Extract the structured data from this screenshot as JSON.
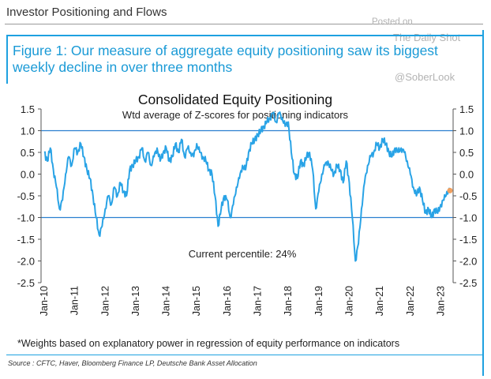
{
  "header": {
    "title": "Investor Positioning and Flows"
  },
  "figure": {
    "title": "Figure 1: Our measure of aggregate equity positioning saw its biggest weekly decline in over three months"
  },
  "watermark": {
    "posted": "Posted on",
    "site": "The Daily Shot",
    "handle": "@SoberLook"
  },
  "footnote": "*Weights based on explanatory power in regression of equity performance on indicators",
  "source": "Source : CFTC, Haver, Bloomberg Finance LP, Deutsche Bank Asset Allocation",
  "colors": {
    "accent": "#1ea1e0",
    "line": "#29a3e6",
    "marker": "#f0a060",
    "reference": "#2a7fd0"
  },
  "chart_data": {
    "type": "line",
    "title": "Consolidated Equity Positioning",
    "subtitle": "Wtd average of Z-scores for positioning indicators",
    "annotation": "Current percentile: 24%",
    "xlabel": "",
    "ylabel": "",
    "ylim": [
      -2.5,
      1.5
    ],
    "yticks": [
      "1.5",
      "1.0",
      "0.5",
      "0.0",
      "-0.5",
      "-1.0",
      "-1.5",
      "-2.0",
      "-2.5"
    ],
    "xticks": [
      "Jan-10",
      "Jan-11",
      "Jan-12",
      "Jan-13",
      "Jan-14",
      "Jan-15",
      "Jan-16",
      "Jan-17",
      "Jan-18",
      "Jan-19",
      "Jan-20",
      "Jan-21",
      "Jan-22",
      "Jan-23"
    ],
    "reference_lines": [
      1.0,
      -1.0
    ],
    "latest_point": {
      "x": 2023.3,
      "y": -0.38
    },
    "series": [
      {
        "name": "Consolidated Equity Positioning",
        "x": [
          2010.0,
          2010.1,
          2010.2,
          2010.3,
          2010.4,
          2010.5,
          2010.6,
          2010.7,
          2010.8,
          2010.9,
          2011.0,
          2011.1,
          2011.2,
          2011.3,
          2011.4,
          2011.5,
          2011.6,
          2011.7,
          2011.8,
          2011.9,
          2012.0,
          2012.1,
          2012.2,
          2012.3,
          2012.4,
          2012.5,
          2012.6,
          2012.7,
          2012.8,
          2012.9,
          2013.0,
          2013.1,
          2013.2,
          2013.3,
          2013.4,
          2013.5,
          2013.6,
          2013.7,
          2013.8,
          2013.9,
          2014.0,
          2014.1,
          2014.2,
          2014.3,
          2014.4,
          2014.5,
          2014.6,
          2014.7,
          2014.8,
          2014.9,
          2015.0,
          2015.1,
          2015.2,
          2015.3,
          2015.4,
          2015.5,
          2015.6,
          2015.7,
          2015.8,
          2015.9,
          2016.0,
          2016.1,
          2016.2,
          2016.3,
          2016.4,
          2016.5,
          2016.6,
          2016.7,
          2016.8,
          2016.9,
          2017.0,
          2017.1,
          2017.2,
          2017.3,
          2017.4,
          2017.5,
          2017.6,
          2017.7,
          2017.8,
          2017.9,
          2018.0,
          2018.1,
          2018.2,
          2018.3,
          2018.4,
          2018.5,
          2018.6,
          2018.7,
          2018.8,
          2018.9,
          2019.0,
          2019.1,
          2019.2,
          2019.3,
          2019.4,
          2019.5,
          2019.6,
          2019.7,
          2019.8,
          2019.9,
          2020.0,
          2020.1,
          2020.2,
          2020.3,
          2020.4,
          2020.5,
          2020.6,
          2020.7,
          2020.8,
          2020.9,
          2021.0,
          2021.1,
          2021.2,
          2021.3,
          2021.4,
          2021.5,
          2021.6,
          2021.7,
          2021.8,
          2021.9,
          2022.0,
          2022.1,
          2022.2,
          2022.3,
          2022.4,
          2022.5,
          2022.6,
          2022.7,
          2022.8,
          2022.9,
          2023.0,
          2023.1,
          2023.2,
          2023.3
        ],
        "y": [
          0.5,
          0.3,
          0.6,
          0.1,
          -0.3,
          -0.8,
          -0.6,
          0.0,
          0.4,
          0.2,
          0.6,
          0.5,
          0.7,
          0.4,
          0.1,
          -0.1,
          -0.5,
          -1.0,
          -1.4,
          -1.2,
          -0.8,
          -0.5,
          -0.7,
          -0.3,
          -0.5,
          -0.2,
          -0.4,
          -0.5,
          0.1,
          0.2,
          0.3,
          0.4,
          0.6,
          0.3,
          0.5,
          0.2,
          0.4,
          0.6,
          0.3,
          0.5,
          0.6,
          0.3,
          0.4,
          0.7,
          0.5,
          0.8,
          0.4,
          0.6,
          0.5,
          0.4,
          0.7,
          0.5,
          0.4,
          0.3,
          0.1,
          0.0,
          -0.5,
          -1.2,
          -0.8,
          -0.5,
          -0.6,
          -1.0,
          -0.7,
          -0.3,
          -0.1,
          0.2,
          0.1,
          0.5,
          0.7,
          0.8,
          0.9,
          1.0,
          1.1,
          1.2,
          1.3,
          1.4,
          1.2,
          1.4,
          1.3,
          1.1,
          1.2,
          0.5,
          0.0,
          -0.1,
          0.3,
          0.2,
          0.4,
          0.5,
          0.1,
          -0.8,
          -0.4,
          0.0,
          0.2,
          0.3,
          0.1,
          0.0,
          0.2,
          0.1,
          -0.2,
          0.3,
          -0.2,
          -1.0,
          -2.0,
          -1.6,
          -0.8,
          -0.2,
          0.2,
          0.4,
          0.5,
          0.7,
          0.6,
          0.8,
          0.7,
          0.5,
          0.4,
          0.6,
          0.5,
          0.6,
          0.5,
          0.3,
          0.0,
          -0.3,
          -0.5,
          -0.3,
          -0.6,
          -0.9,
          -0.8,
          -1.0,
          -0.8,
          -0.9,
          -0.7,
          -0.6,
          -0.4,
          -0.38
        ]
      }
    ]
  }
}
